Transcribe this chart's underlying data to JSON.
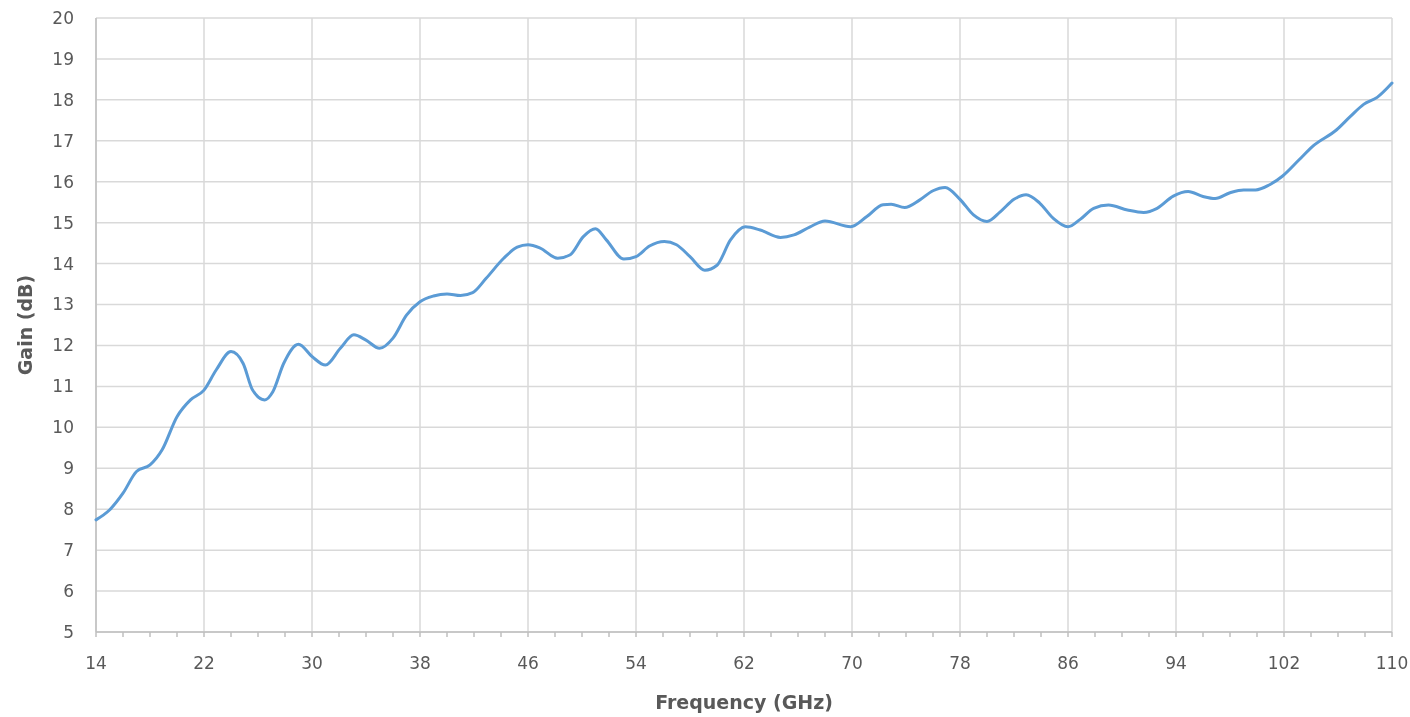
{
  "chart_data": {
    "type": "line",
    "xlabel": "Frequency (GHz)",
    "ylabel": "Gain (dB)",
    "xlim": [
      14,
      110
    ],
    "ylim": [
      5,
      20
    ],
    "xticks": [
      14,
      {
        "value": 16,
        "label": null
      },
      {
        "value": 18,
        "label": null
      },
      {
        "value": 20,
        "label": null
      },
      22,
      {
        "value": 24,
        "label": null
      },
      {
        "value": 26,
        "label": null
      },
      {
        "value": 28,
        "label": null
      },
      30,
      {
        "value": 32,
        "label": null
      },
      {
        "value": 34,
        "label": null
      },
      {
        "value": 36,
        "label": null
      },
      38,
      {
        "value": 40,
        "label": null
      },
      {
        "value": 42,
        "label": null
      },
      {
        "value": 44,
        "label": null
      },
      46,
      {
        "value": 48,
        "label": null
      },
      {
        "value": 50,
        "label": null
      },
      {
        "value": 52,
        "label": null
      },
      54,
      {
        "value": 56,
        "label": null
      },
      {
        "value": 58,
        "label": null
      },
      {
        "value": 60,
        "label": null
      },
      62,
      {
        "value": 64,
        "label": null
      },
      {
        "value": 66,
        "label": null
      },
      {
        "value": 68,
        "label": null
      },
      70,
      {
        "value": 72,
        "label": null
      },
      {
        "value": 74,
        "label": null
      },
      {
        "value": 76,
        "label": null
      },
      78,
      {
        "value": 80,
        "label": null
      },
      {
        "value": 82,
        "label": null
      },
      {
        "value": 84,
        "label": null
      },
      86,
      {
        "value": 88,
        "label": null
      },
      {
        "value": 90,
        "label": null
      },
      {
        "value": 92,
        "label": null
      },
      94,
      {
        "value": 96,
        "label": null
      },
      {
        "value": 98,
        "label": null
      },
      {
        "value": 100,
        "label": null
      },
      102,
      {
        "value": 104,
        "label": null
      },
      {
        "value": 106,
        "label": null
      },
      {
        "value": 108,
        "label": null
      },
      110
    ],
    "yticks": [
      5,
      6,
      7,
      8,
      9,
      10,
      11,
      12,
      13,
      14,
      15,
      16,
      17,
      18,
      19,
      20
    ],
    "grid": true,
    "line_style": "solid",
    "series": [
      {
        "color": "#5b9bd5",
        "x": [
          14,
          15,
          16,
          17,
          18,
          18.9,
          20,
          21,
          22,
          22.9,
          24,
          24.9,
          25.6,
          26.5,
          27.1,
          27.9,
          29,
          30,
          31,
          32.1,
          33.1,
          34,
          35,
          36,
          37,
          38,
          39,
          40,
          41,
          41.9,
          42.9,
          44.2,
          45.2,
          46,
          46.9,
          48.2,
          49.1,
          50.1,
          51,
          51.8,
          53.1,
          54,
          55,
          56.1,
          57,
          58,
          59.1,
          60,
          61,
          62.1,
          63.2,
          64.7,
          65.7,
          66.9,
          68,
          69.9,
          71.1,
          72.3,
          72.9,
          73.9,
          75,
          76,
          76.9,
          78,
          79,
          80,
          81,
          82,
          82.9,
          83.9,
          84.9,
          86,
          86.9,
          87.9,
          89,
          90.4,
          91.6,
          92.6,
          93.8,
          94.9,
          96,
          96.9,
          98,
          99,
          99.9,
          100.9,
          101.9,
          103.1,
          104.1,
          105.9,
          106.9,
          107.9,
          108.9,
          110
        ],
        "values": [
          7.74,
          7.98,
          8.39,
          8.92,
          9.08,
          9.45,
          10.26,
          10.67,
          10.91,
          11.4,
          11.85,
          11.56,
          10.91,
          10.67,
          10.87,
          11.56,
          12.03,
          11.73,
          11.52,
          11.93,
          12.26,
          12.13,
          11.93,
          12.18,
          12.74,
          13.07,
          13.21,
          13.26,
          13.22,
          13.29,
          13.64,
          14.13,
          14.4,
          14.46,
          14.38,
          14.13,
          14.21,
          14.66,
          14.85,
          14.58,
          14.11,
          14.17,
          14.43,
          14.54,
          14.46,
          14.17,
          13.84,
          13.96,
          14.58,
          14.9,
          14.82,
          14.64,
          14.7,
          14.9,
          15.04,
          14.9,
          15.15,
          15.44,
          15.45,
          15.37,
          15.55,
          15.78,
          15.86,
          15.57,
          15.19,
          15.03,
          15.27,
          15.57,
          15.68,
          15.48,
          15.11,
          14.9,
          15.08,
          15.35,
          15.43,
          15.31,
          15.25,
          15.35,
          15.65,
          15.76,
          15.64,
          15.59,
          15.73,
          15.8,
          15.8,
          15.92,
          16.14,
          16.53,
          16.86,
          17.27,
          17.59,
          17.89,
          18.06,
          18.41
        ]
      }
    ]
  }
}
